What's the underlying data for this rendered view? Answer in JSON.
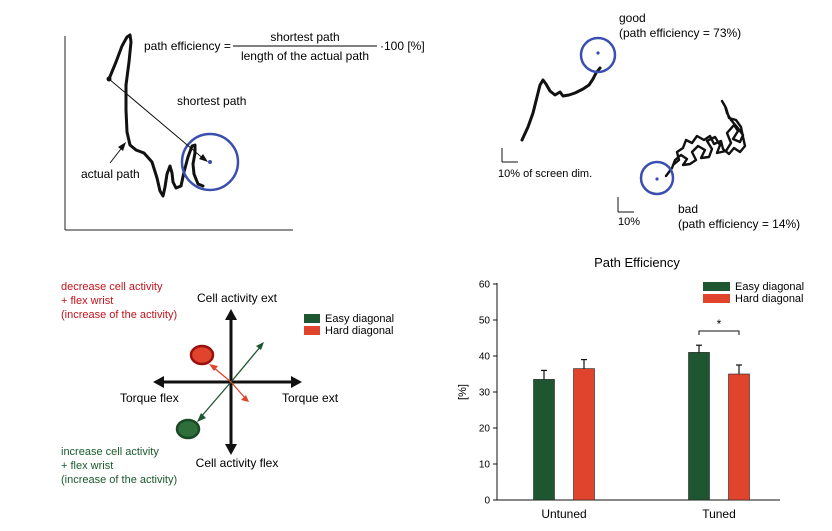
{
  "panel_a": {
    "formula_lhs": "path efficiency =",
    "formula_numerator": "shortest path",
    "formula_denominator": "length of the actual path",
    "formula_tail": "·100 [%]",
    "shortest_label": "shortest path",
    "actual_label": "actual path"
  },
  "panel_b": {
    "good_label": "good",
    "good_value": "(path efficiency = 73%)",
    "bad_label": "bad",
    "bad_value": "(path efficiency = 14%)",
    "scale_label_1": "10% of screen dim.",
    "scale_label_2": "10%"
  },
  "panel_c": {
    "axis_up": "Cell activity ext",
    "axis_down": "Cell activity flex",
    "axis_left": "Torque flex",
    "axis_right": "Torque ext",
    "red_line1": "decrease cell activity",
    "red_line2": "+ flex wrist",
    "red_line3": "(increase of the activity)",
    "green_line1": "increase cell activity",
    "green_line2": "+ flex wrist",
    "green_line3": "(increase of the activity)",
    "legend_easy": "Easy diagonal",
    "legend_hard": "Hard diagonal",
    "colors": {
      "easy": "#1e5631",
      "hard": "#e0442c",
      "red_text": "#c0141c",
      "green_text": "#1a5a2a",
      "target": "#3a4fb0"
    }
  },
  "chart_data": {
    "type": "bar",
    "title": "Path Efficiency",
    "ylabel": "[%]",
    "xlabel": "",
    "categories": [
      "Untuned",
      "Tuned"
    ],
    "series": [
      {
        "name": "Easy diagonal",
        "color": "#1e5631",
        "values": [
          33.5,
          41
        ],
        "errors": [
          2.5,
          2
        ]
      },
      {
        "name": "Hard diagonal",
        "color": "#e0442c",
        "values": [
          36.5,
          35
        ],
        "errors": [
          2.5,
          2.5
        ]
      }
    ],
    "ylim": [
      0,
      60
    ],
    "yticks": [
      "0",
      "10",
      "20",
      "30",
      "40",
      "50",
      "60"
    ],
    "significance": {
      "category": "Tuned",
      "label": "*"
    },
    "legend_position": "top-right",
    "grid": false
  }
}
